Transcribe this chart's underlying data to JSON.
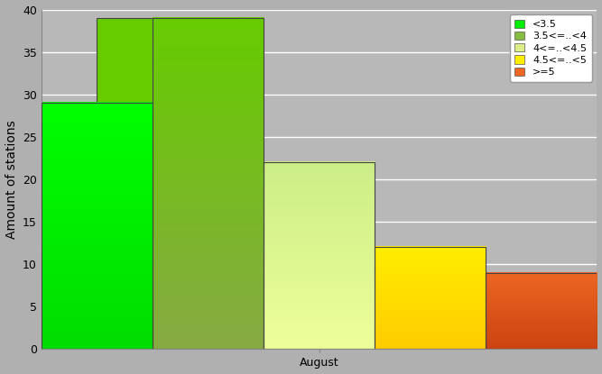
{
  "bars": [
    {
      "label": "<3.5",
      "value": 29,
      "color_top": "#00ff00",
      "color_bottom": "#00dd00"
    },
    {
      "label": "3.5<=..<4",
      "value": 39,
      "color_top": "#66cc00",
      "color_bottom": "#88aa44"
    },
    {
      "label": "4<=..<4.5",
      "value": 22,
      "color_top": "#ccee88",
      "color_bottom": "#eeff99"
    },
    {
      "label": "4.5<=..<5",
      "value": 12,
      "color_top": "#ffee00",
      "color_bottom": "#ffcc00"
    },
    {
      "label": ">=5",
      "value": 9,
      "color_top": "#ee6622",
      "color_bottom": "#cc4411"
    }
  ],
  "legend_colors": [
    "#00ee00",
    "#88bb44",
    "#ddee88",
    "#ffee00",
    "#ee6622"
  ],
  "ylabel": "Amount of stations",
  "xlabel": "August",
  "ylim": [
    0,
    40
  ],
  "yticks": [
    0,
    5,
    10,
    15,
    20,
    25,
    30,
    35,
    40
  ],
  "background_color": "#b0b0b0",
  "plot_bg_color": "#b8b8b8",
  "grid_color": "#c8c8c8",
  "legend_fontsize": 8,
  "axis_fontsize": 10,
  "tick_fontsize": 9
}
